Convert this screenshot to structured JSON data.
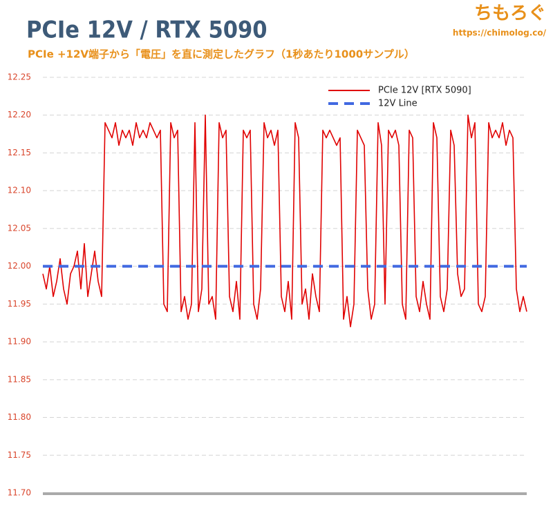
{
  "chart_data": {
    "type": "line",
    "title": "PCIe 12V / RTX 5090",
    "subtitle": "PCIe +12V端子から「電圧」を直に測定したグラフ（1秒あたり1000サンプル）",
    "annotations": [
      "ちもろぐ",
      "https://chimolog.co/"
    ],
    "ylim": [
      11.7,
      12.25
    ],
    "yticks": [
      12.25,
      {
        "value": 12.2,
        "label": "12.20"
      },
      12.15,
      {
        "value": 12.1,
        "label": "12.10"
      },
      12.05,
      {
        "value": 12,
        "label": "12.00"
      },
      11.95,
      {
        "value": 11.9,
        "label": "11.90"
      },
      11.85,
      {
        "value": 11.8,
        "label": "11.80"
      },
      11.75,
      {
        "value": 11.7,
        "label": "11.70"
      }
    ],
    "grid": true,
    "legend": "upper right",
    "series": [
      {
        "name": "PCIe 12V [RTX 5090]",
        "color": "#e00000",
        "values": [
          11.99,
          11.97,
          12.0,
          11.96,
          11.98,
          12.01,
          11.97,
          11.95,
          11.99,
          12.0,
          12.02,
          11.97,
          12.03,
          11.96,
          11.99,
          12.02,
          11.98,
          11.96,
          12.19,
          12.18,
          12.17,
          12.19,
          12.16,
          12.18,
          12.17,
          12.18,
          12.16,
          12.19,
          12.17,
          12.18,
          12.17,
          12.19,
          12.18,
          12.17,
          12.18,
          11.95,
          11.94,
          12.19,
          12.17,
          12.18,
          11.94,
          11.96,
          11.93,
          11.95,
          12.19,
          11.94,
          11.97,
          12.2,
          11.95,
          11.96,
          11.93,
          12.19,
          12.17,
          12.18,
          11.96,
          11.94,
          11.98,
          11.93,
          12.18,
          12.17,
          12.18,
          11.95,
          11.93,
          11.97,
          12.19,
          12.17,
          12.18,
          12.16,
          12.18,
          11.96,
          11.94,
          11.98,
          11.93,
          12.19,
          12.17,
          11.95,
          11.97,
          11.93,
          11.99,
          11.96,
          11.94,
          12.18,
          12.17,
          12.18,
          12.17,
          12.16,
          12.17,
          11.93,
          11.96,
          11.92,
          11.95,
          12.18,
          12.17,
          12.16,
          11.97,
          11.93,
          11.95,
          12.19,
          12.16,
          11.95,
          12.18,
          12.17,
          12.18,
          12.16,
          11.95,
          11.93,
          12.18,
          12.17,
          11.96,
          11.94,
          11.98,
          11.95,
          11.93,
          12.19,
          12.17,
          11.96,
          11.94,
          11.97,
          12.18,
          12.16,
          11.99,
          11.96,
          11.97,
          12.2,
          12.17,
          12.19,
          11.95,
          11.94,
          11.96,
          12.19,
          12.17,
          12.18,
          12.17,
          12.19,
          12.16,
          12.18,
          12.17,
          11.97,
          11.94,
          11.96,
          11.94
        ]
      },
      {
        "name": "12V Line",
        "color": "#4169e1",
        "dashed": true,
        "values": [
          12,
          12
        ]
      }
    ]
  }
}
